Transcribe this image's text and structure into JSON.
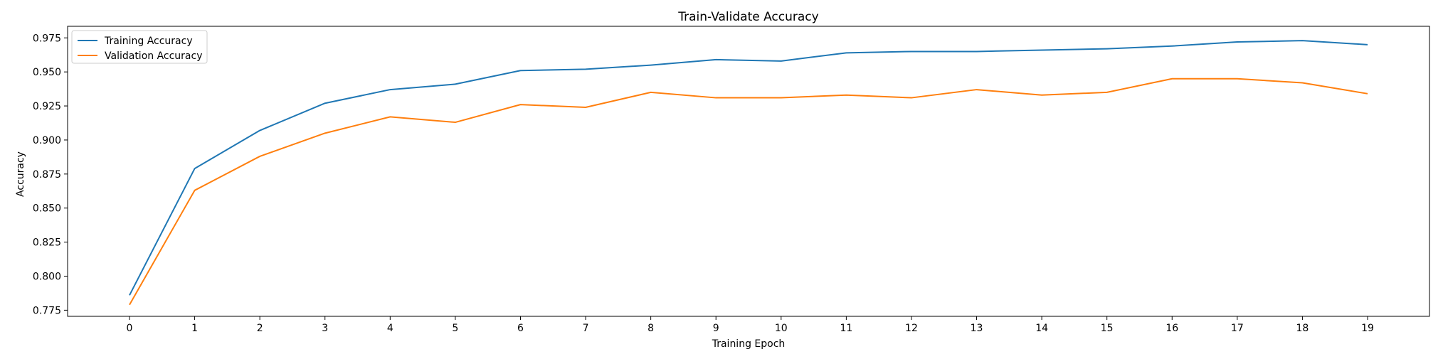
{
  "chart_data": {
    "type": "line",
    "title": "Train-Validate Accuracy",
    "xlabel": "Training Epoch",
    "ylabel": "Accuracy",
    "x": [
      0,
      1,
      2,
      3,
      4,
      5,
      6,
      7,
      8,
      9,
      10,
      11,
      12,
      13,
      14,
      15,
      16,
      17,
      18,
      19
    ],
    "xticks": [
      "0",
      "1",
      "2",
      "3",
      "4",
      "5",
      "6",
      "7",
      "8",
      "9",
      "10",
      "11",
      "12",
      "13",
      "14",
      "15",
      "16",
      "17",
      "18",
      "19"
    ],
    "yticks": [
      "0.775",
      "0.800",
      "0.825",
      "0.850",
      "0.875",
      "0.900",
      "0.925",
      "0.950",
      "0.975"
    ],
    "xlim": [
      -0.95,
      19.95
    ],
    "ylim": [
      0.7705,
      0.9835
    ],
    "grid": false,
    "legend_position": "top-left",
    "series": [
      {
        "name": "Training Accuracy",
        "color": "#1f77b4",
        "values": [
          0.786,
          0.879,
          0.907,
          0.927,
          0.937,
          0.941,
          0.951,
          0.952,
          0.955,
          0.959,
          0.958,
          0.964,
          0.965,
          0.965,
          0.966,
          0.967,
          0.969,
          0.972,
          0.973,
          0.97
        ]
      },
      {
        "name": "Validation Accuracy",
        "color": "#ff7f0e",
        "values": [
          0.779,
          0.863,
          0.888,
          0.905,
          0.917,
          0.913,
          0.926,
          0.924,
          0.935,
          0.931,
          0.931,
          0.933,
          0.931,
          0.937,
          0.933,
          0.935,
          0.945,
          0.945,
          0.942,
          0.934
        ]
      }
    ]
  }
}
